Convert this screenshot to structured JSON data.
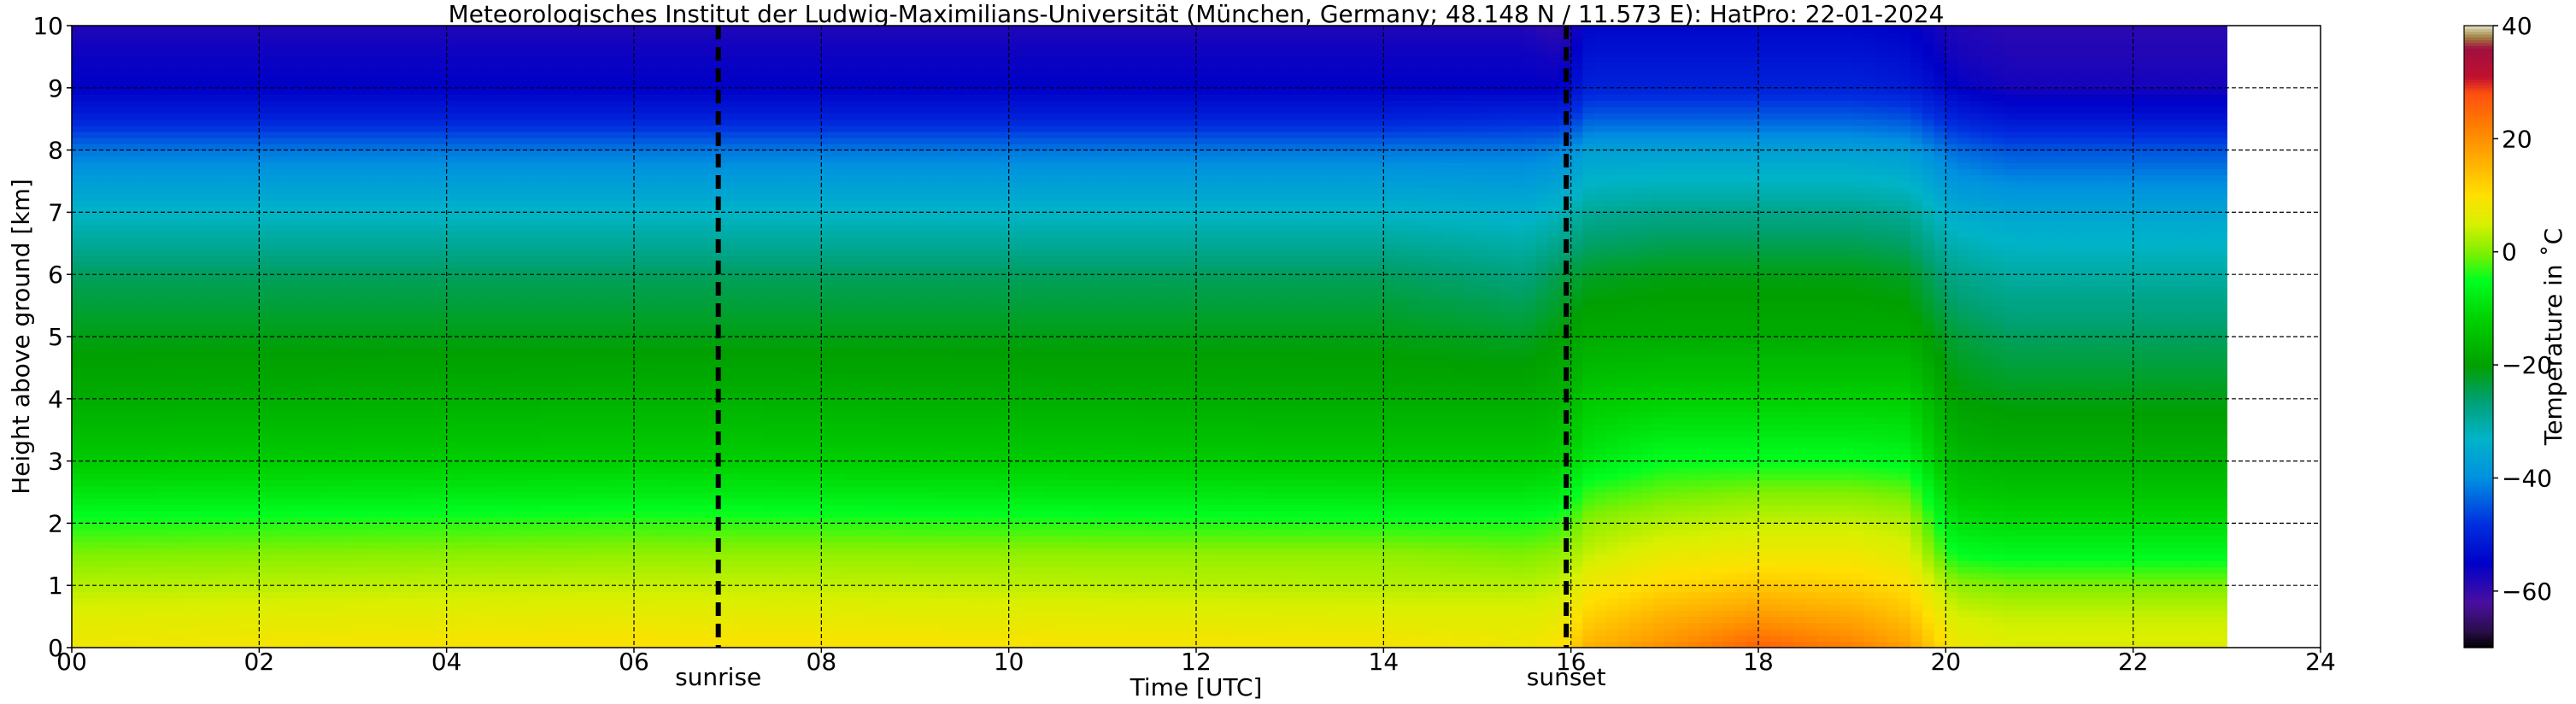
{
  "chart_data": {
    "type": "heatmap",
    "title": "Meteorologisches Institut der Ludwig-Maximilians-Universität (München, Germany; 48.148 N / 11.573 E):    HatPro: 22-01-2024",
    "xlabel": "Time [UTC]",
    "ylabel": "Height above ground [km]",
    "xlim": [
      0,
      24
    ],
    "ylim": [
      0,
      10
    ],
    "data_extent_hours": [
      0,
      23
    ],
    "x_ticks": [
      0,
      2,
      4,
      6,
      8,
      10,
      12,
      14,
      16,
      18,
      20,
      22,
      24
    ],
    "x_tick_labels": [
      "00",
      "02",
      "04",
      "06",
      "08",
      "10",
      "12",
      "14",
      "16",
      "18",
      "20",
      "22",
      "24"
    ],
    "y_ticks": [
      0,
      1,
      2,
      3,
      4,
      5,
      6,
      7,
      8,
      9,
      10
    ],
    "y_tick_labels": [
      "0",
      "1",
      "2",
      "3",
      "4",
      "5",
      "6",
      "7",
      "8",
      "9",
      "10"
    ],
    "grid": true,
    "annotations": [
      {
        "label": "sunrise",
        "x": 6.9
      },
      {
        "label": "sunset",
        "x": 15.95
      }
    ],
    "colorbar": {
      "label": "Temperature in ˚C",
      "range": [
        -70,
        40
      ],
      "ticks": [
        -60,
        -40,
        -20,
        0,
        20,
        40
      ],
      "tick_labels": [
        "−60",
        "−40",
        "−20",
        "0",
        "20",
        "40"
      ],
      "colors": [
        {
          "value": -70,
          "color": "#000000"
        },
        {
          "value": -67,
          "color": "#2a0e4a"
        },
        {
          "value": -62,
          "color": "#4a0fa0"
        },
        {
          "value": -55,
          "color": "#0000c8"
        },
        {
          "value": -48,
          "color": "#0030e0"
        },
        {
          "value": -40,
          "color": "#0090e0"
        },
        {
          "value": -33,
          "color": "#00b4c8"
        },
        {
          "value": -26,
          "color": "#00a070"
        },
        {
          "value": -20,
          "color": "#00a000"
        },
        {
          "value": -12,
          "color": "#00d000"
        },
        {
          "value": -5,
          "color": "#00ff20"
        },
        {
          "value": 0,
          "color": "#80f000"
        },
        {
          "value": 5,
          "color": "#d8f000"
        },
        {
          "value": 10,
          "color": "#ffe000"
        },
        {
          "value": 16,
          "color": "#ffb000"
        },
        {
          "value": 22,
          "color": "#ff8000"
        },
        {
          "value": 28,
          "color": "#ff5010"
        },
        {
          "value": 31,
          "color": "#c01030"
        },
        {
          "value": 36,
          "color": "#a01040"
        },
        {
          "value": 38,
          "color": "#a08040"
        },
        {
          "value": 40,
          "color": "#e0e0c0"
        }
      ]
    },
    "profile_times": [
      0,
      6,
      14,
      15.5,
      15.9,
      16.2,
      17,
      18,
      19,
      19.6,
      20.1,
      20.7,
      23
    ],
    "profile_heights": [
      0,
      0.5,
      1,
      1.5,
      2,
      2.5,
      3,
      4,
      5,
      6,
      7,
      8,
      8.5,
      9,
      9.5,
      10
    ],
    "temperature": [
      [
        8,
        6,
        3,
        0,
        -4,
        -9,
        -13,
        -18,
        -21,
        -25,
        -33,
        -42,
        -50,
        -55,
        -56,
        -58
      ],
      [
        10,
        7,
        4,
        1,
        -3,
        -8,
        -12,
        -17,
        -21,
        -25,
        -33,
        -42,
        -50,
        -55,
        -56,
        -58
      ],
      [
        9,
        6,
        3,
        1,
        -4,
        -9,
        -13,
        -18,
        -21,
        -25,
        -33,
        -42,
        -50,
        -55,
        -56,
        -58
      ],
      [
        8,
        6,
        3,
        0,
        -4,
        -9,
        -13,
        -18,
        -22,
        -27,
        -34,
        -42,
        -49,
        -55,
        -56,
        -58
      ],
      [
        10,
        7,
        4,
        1,
        -3,
        -8,
        -12,
        -17,
        -20,
        -24,
        -32,
        -41,
        -49,
        -55,
        -57,
        -60
      ],
      [
        16,
        12,
        8,
        4,
        1,
        -3,
        -8,
        -13,
        -18,
        -22,
        -29,
        -37,
        -44,
        -50,
        -52,
        -54
      ],
      [
        20,
        16,
        11,
        7,
        3,
        -1,
        -5,
        -12,
        -18,
        -21,
        -28,
        -37,
        -44,
        -50,
        -52,
        -54
      ],
      [
        26,
        19,
        13,
        8,
        4,
        0,
        -5,
        -12,
        -18,
        -21,
        -28,
        -37,
        -44,
        -50,
        -52,
        -54
      ],
      [
        22,
        17,
        12,
        8,
        4,
        0,
        -5,
        -12,
        -18,
        -21,
        -28,
        -37,
        -44,
        -50,
        -52,
        -54
      ],
      [
        18,
        14,
        10,
        6,
        3,
        -1,
        -6,
        -12,
        -18,
        -22,
        -29,
        -38,
        -45,
        -51,
        -53,
        -55
      ],
      [
        8,
        5,
        1,
        -5,
        -9,
        -13,
        -16,
        -20,
        -23,
        -28,
        -35,
        -43,
        -50,
        -55,
        -57,
        -58
      ],
      [
        6,
        4,
        0,
        -6,
        -10,
        -14,
        -17,
        -21,
        -25,
        -30,
        -36,
        -45,
        -52,
        -57,
        -58,
        -59
      ],
      [
        6,
        4,
        0,
        -6,
        -10,
        -14,
        -17,
        -21,
        -25,
        -30,
        -36,
        -45,
        -52,
        -57,
        -58,
        -59
      ]
    ]
  }
}
